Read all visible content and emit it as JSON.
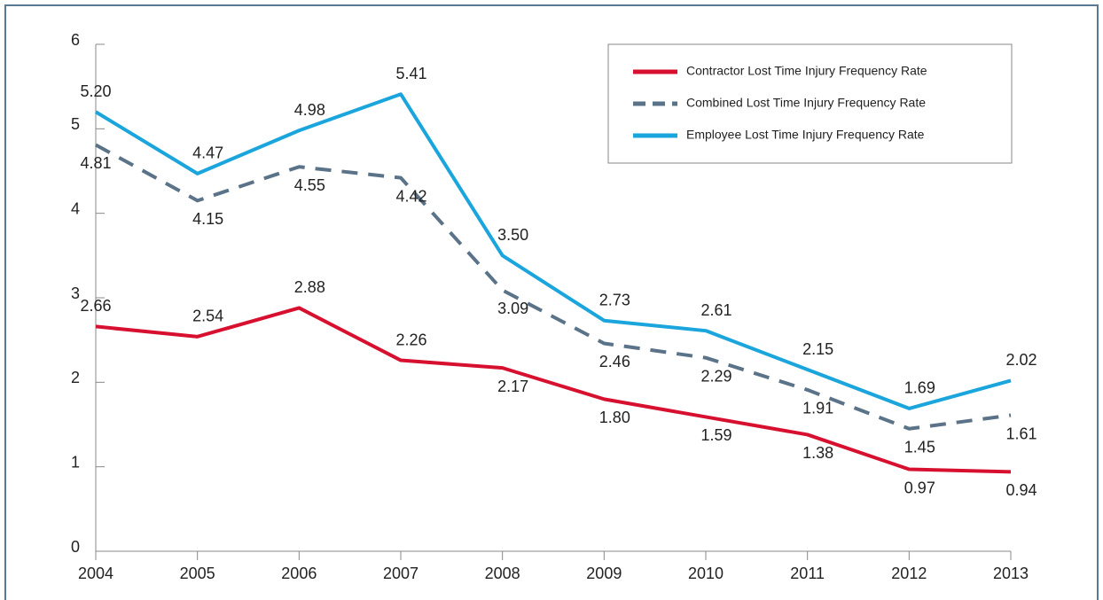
{
  "chart_data": {
    "type": "line",
    "categories": [
      "2004",
      "2005",
      "2006",
      "2007",
      "2008",
      "2009",
      "2010",
      "2011",
      "2012",
      "2013"
    ],
    "series": [
      {
        "name": "Contractor Lost Time Injury Frequency Rate",
        "color": "#d7102f",
        "dash": false,
        "values": [
          2.66,
          2.54,
          2.88,
          2.26,
          2.17,
          1.8,
          1.59,
          1.38,
          0.97,
          0.94
        ],
        "value_labels": [
          "2.66",
          "2.54",
          "2.88",
          "2.26",
          "2.17",
          "1.80",
          "1.59",
          "1.38",
          "0.97",
          "0.94"
        ]
      },
      {
        "name": "Combined Lost Time Injury Frequency Rate",
        "color": "#5b7388",
        "dash": true,
        "values": [
          4.81,
          4.15,
          4.55,
          4.42,
          3.09,
          2.46,
          2.29,
          1.91,
          1.45,
          1.61
        ],
        "value_labels": [
          "4.81",
          "4.15",
          "4.55",
          "4.42",
          "3.09",
          "2.46",
          "2.29",
          "1.91",
          "1.45",
          "1.61"
        ]
      },
      {
        "name": "Employee Lost Time Injury Frequency Rate",
        "color": "#1aa5dc",
        "dash": false,
        "values": [
          5.2,
          4.47,
          4.98,
          5.41,
          3.5,
          2.73,
          2.61,
          2.15,
          1.69,
          2.02
        ],
        "value_labels": [
          "5.20",
          "4.47",
          "4.98",
          "5.41",
          "3.50",
          "2.73",
          "2.61",
          "2.15",
          "1.69",
          "2.02"
        ]
      }
    ],
    "ylim": [
      0,
      6
    ],
    "yticks": [
      0,
      1,
      2,
      3,
      4,
      5,
      6
    ],
    "grid": false,
    "legend": "upper right"
  }
}
